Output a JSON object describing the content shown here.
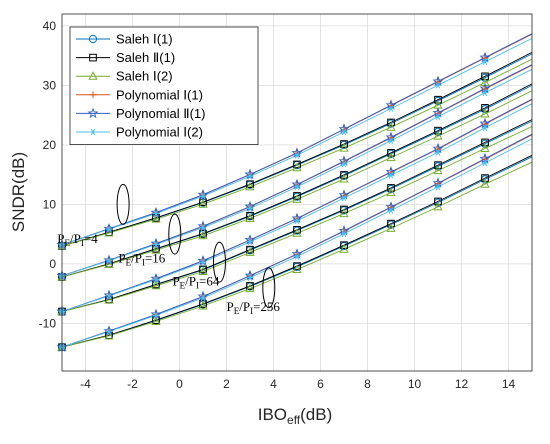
{
  "chart_data": {
    "type": "line",
    "xlabel": {
      "main": "IBO",
      "sub": "eff",
      "tail": "(dB)"
    },
    "ylabel": "SNDR(dB)",
    "xlim": [
      -5,
      15
    ],
    "ylim": [
      -18,
      42
    ],
    "xticks": [
      -4,
      -2,
      0,
      2,
      4,
      6,
      8,
      10,
      12,
      14
    ],
    "yticks": [
      -10,
      0,
      10,
      20,
      30,
      40
    ],
    "grid": true,
    "legend_position": "top-left",
    "series": [
      {
        "name": "Saleh  Ⅰ(1)",
        "color": "#0072BD",
        "marker": "circle"
      },
      {
        "name": "Saleh  Ⅱ(1)",
        "color": "#000000",
        "marker": "square"
      },
      {
        "name": "Saleh  Ⅰ(2)",
        "color": "#77AC30",
        "marker": "triangle"
      },
      {
        "name": "Polynomial  Ⅰ(1)",
        "color": "#D95319",
        "marker": "plus"
      },
      {
        "name": "Polynomial  Ⅱ(1)",
        "color": "#2E5EC7",
        "marker": "star"
      },
      {
        "name": "Polynomial  Ⅰ(2)",
        "color": "#4DBEEE",
        "marker": "asterisk"
      }
    ],
    "groups": [
      {
        "label_main": "P",
        "label_sub1": "E",
        "label_mid": "/P",
        "label_sub2": "I",
        "label_tail": "=4",
        "x": [
          -5,
          -3,
          -1,
          1,
          3,
          5,
          7,
          9,
          11,
          13,
          15
        ],
        "saleh": [
          3.0,
          5.3,
          7.7,
          10.3,
          13.3,
          16.6,
          20.0,
          23.6,
          27.4,
          31.3,
          35.3
        ],
        "poly": [
          3.2,
          5.9,
          8.6,
          11.6,
          15.0,
          18.6,
          22.6,
          26.6,
          30.6,
          34.6,
          38.6
        ]
      },
      {
        "label_main": "P",
        "label_sub1": "E",
        "label_mid": "/P",
        "label_sub2": "I",
        "label_tail": "=16",
        "x": [
          -5,
          -3,
          -1,
          1,
          3,
          5,
          7,
          9,
          11,
          13,
          15
        ],
        "saleh": [
          -2.2,
          0.0,
          2.5,
          5.0,
          8.0,
          11.3,
          14.8,
          18.5,
          22.2,
          26.0,
          30.0
        ],
        "poly": [
          -2.0,
          0.6,
          3.4,
          6.3,
          9.6,
          13.3,
          17.2,
          21.2,
          25.3,
          29.4,
          33.4
        ]
      },
      {
        "label_main": "P",
        "label_sub1": "E",
        "label_mid": "/P",
        "label_sub2": "I",
        "label_tail": "=64",
        "x": [
          -5,
          -3,
          -1,
          1,
          3,
          5,
          7,
          9,
          11,
          13,
          15
        ],
        "saleh": [
          -8.0,
          -6.0,
          -3.5,
          -1.0,
          2.3,
          5.6,
          9.0,
          12.6,
          16.4,
          20.2,
          24.0
        ],
        "poly": [
          -8.0,
          -5.3,
          -2.5,
          0.5,
          4.0,
          7.6,
          11.5,
          15.4,
          19.3,
          23.5,
          27.6
        ]
      },
      {
        "label_main": "P",
        "label_sub1": "E",
        "label_mid": "/P",
        "label_sub2": "I",
        "label_tail": "=256",
        "x": [
          -5,
          -3,
          -1,
          1,
          3,
          5,
          7,
          9,
          11,
          13,
          15
        ],
        "saleh": [
          -14.0,
          -12.0,
          -9.5,
          -6.8,
          -3.8,
          -0.5,
          3.0,
          6.6,
          10.3,
          14.2,
          18.0
        ],
        "poly": [
          -14.0,
          -11.3,
          -8.5,
          -5.5,
          -2.0,
          1.6,
          5.5,
          9.5,
          13.5,
          17.6,
          21.7
        ]
      }
    ]
  }
}
